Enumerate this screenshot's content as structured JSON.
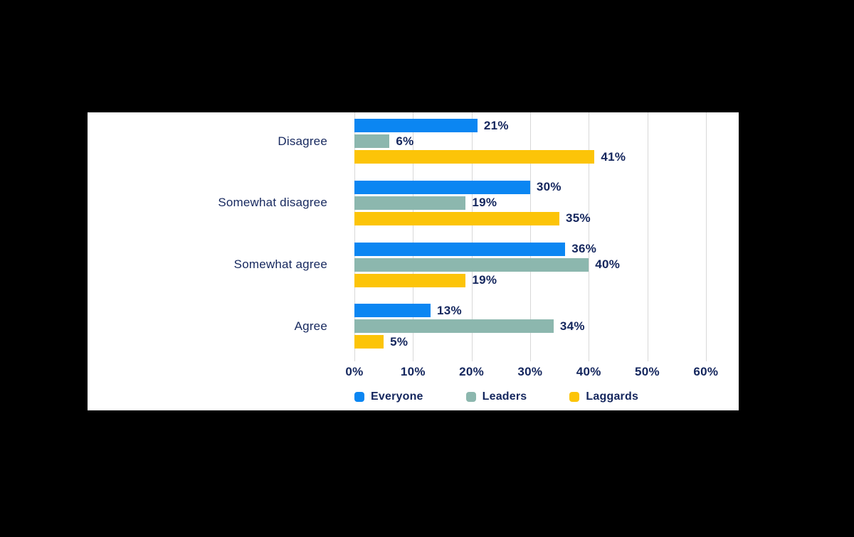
{
  "canvas": {
    "background_color": "#000000",
    "card_background_color": "#ffffff"
  },
  "chart_data": {
    "type": "bar",
    "orientation": "horizontal",
    "title": "",
    "xlabel": "",
    "ylabel": "",
    "categories": [
      "Disagree",
      "Somewhat disagree",
      "Somewhat agree",
      "Agree"
    ],
    "series": [
      {
        "name": "Everyone",
        "color": "#0b86f2",
        "values": [
          21,
          30,
          36,
          13
        ]
      },
      {
        "name": "Leaders",
        "color": "#8cb7ae",
        "values": [
          6,
          19,
          40,
          34
        ]
      },
      {
        "name": "Laggards",
        "color": "#fcc408",
        "values": [
          41,
          35,
          19,
          5
        ]
      }
    ],
    "value_suffix": "%",
    "x_ticks": [
      "0%",
      "10%",
      "20%",
      "30%",
      "40%",
      "50%",
      "60%"
    ],
    "x_tick_values": [
      0,
      10,
      20,
      30,
      40,
      50,
      60
    ],
    "xlim": [
      0,
      60
    ],
    "grid": true,
    "gridline_color": "#d8d8d8",
    "text_color": "#14265d",
    "legend_position": "bottom",
    "legend_labels": [
      "Everyone",
      "Leaders",
      "Laggards"
    ]
  }
}
